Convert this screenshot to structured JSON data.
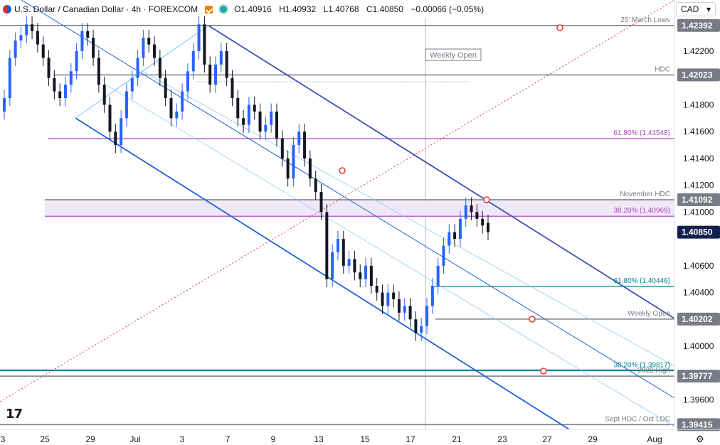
{
  "header": {
    "symbol_title": "U.S. Dollar / Canadian Dollar · 4h · FOREXCOM",
    "open": "O1.40916",
    "high": "H1.40932",
    "low": "L1.40768",
    "close": "C1.40850",
    "change": "−0.00066 (−0.05%)",
    "currency": "CAD",
    "icons": [
      "flag-icon",
      "alert-icon",
      "status-dot-icon",
      "chevron-down-icon",
      "gear-icon"
    ]
  },
  "chart_data": {
    "type": "candlestick",
    "y_tick_labels": [
      "1.42200",
      "1.41800",
      "1.41600",
      "1.41400",
      "1.41200",
      "1.41000",
      "1.40600",
      "1.40400",
      "1.40000",
      "1.39600"
    ],
    "x_tick_labels": [
      "3",
      "25",
      "29",
      "Jul",
      "3",
      "7",
      "9",
      "13",
      "15",
      "17",
      "21",
      "23",
      "27",
      "29",
      "Aug"
    ],
    "price_tags": [
      {
        "value": "1.42392",
        "style": "gray"
      },
      {
        "value": "1.42023",
        "style": "gray"
      },
      {
        "value": "1.41092",
        "style": "gray"
      },
      {
        "value": "1.40850",
        "style": "current"
      },
      {
        "value": "1.40202",
        "style": "gray"
      },
      {
        "value": "1.39777",
        "style": "gray"
      },
      {
        "value": "1.39415",
        "style": "gray"
      }
    ],
    "level_labels": [
      {
        "text": "25' March Lows",
        "price": 1.42392,
        "color": "#787b86"
      },
      {
        "text": "HDC",
        "price": 1.42023,
        "color": "#787b86"
      },
      {
        "text": "61.80% (1.41548)",
        "price": 1.41548,
        "color": "#ab47bc"
      },
      {
        "text": "November HDC",
        "price": 1.41092,
        "color": "#787b86"
      },
      {
        "text": "38.20% (1.40969)",
        "price": 1.40969,
        "color": "#ab47bc"
      },
      {
        "text": "61.80% (1.40446)",
        "price": 1.40446,
        "color": "#00838f"
      },
      {
        "text": "Weekly Open",
        "price": 1.40202,
        "color": "#787b86"
      },
      {
        "text": "38.20% (1.39817)",
        "price": 1.39817,
        "color": "#00838f"
      },
      {
        "text": "2022 High",
        "price": 1.39777,
        "color": "#787b86"
      },
      {
        "text": "Sept HDC / Oct LDC",
        "price": 1.39415,
        "color": "#787b86"
      }
    ],
    "annotation_box": "Weekly Open",
    "up_color": "#2962ff",
    "down_color": "#131722",
    "candles_close": [
      1.4185,
      1.4215,
      1.4228,
      1.4232,
      1.424,
      1.4235,
      1.4225,
      1.4215,
      1.42,
      1.419,
      1.4185,
      1.4195,
      1.4205,
      1.422,
      1.4235,
      1.423,
      1.4215,
      1.4195,
      1.418,
      1.416,
      1.415,
      1.417,
      1.419,
      1.42,
      1.4215,
      1.423,
      1.4225,
      1.4215,
      1.42,
      1.4185,
      1.417,
      1.4175,
      1.419,
      1.4205,
      1.422,
      1.424,
      1.421,
      1.4195,
      1.421,
      1.422,
      1.42,
      1.4185,
      1.417,
      1.4165,
      1.418,
      1.4175,
      1.416,
      1.4165,
      1.4175,
      1.4155,
      1.414,
      1.4125,
      1.415,
      1.416,
      1.414,
      1.4125,
      1.4115,
      1.41,
      1.405,
      1.407,
      1.408,
      1.406,
      1.4065,
      1.4055,
      1.405,
      1.406,
      1.4045,
      1.404,
      1.403,
      1.404,
      1.4035,
      1.4025,
      1.403,
      1.402,
      1.401,
      1.4015,
      1.403,
      1.4045,
      1.406,
      1.4075,
      1.4085,
      1.408,
      1.4095,
      1.4105,
      1.41,
      1.4095,
      1.409,
      1.4085
    ],
    "candles_open": [
      1.4175,
      1.4185,
      1.4215,
      1.4228,
      1.4232,
      1.424,
      1.4235,
      1.4225,
      1.4215,
      1.42,
      1.419,
      1.4185,
      1.4195,
      1.4205,
      1.422,
      1.4235,
      1.423,
      1.4215,
      1.4195,
      1.418,
      1.416,
      1.415,
      1.417,
      1.419,
      1.42,
      1.4215,
      1.423,
      1.4225,
      1.4215,
      1.42,
      1.4185,
      1.417,
      1.4175,
      1.419,
      1.4205,
      1.422,
      1.424,
      1.421,
      1.4195,
      1.421,
      1.422,
      1.42,
      1.4185,
      1.417,
      1.4165,
      1.418,
      1.4175,
      1.416,
      1.4165,
      1.4175,
      1.4155,
      1.414,
      1.4125,
      1.415,
      1.416,
      1.414,
      1.4125,
      1.4115,
      1.41,
      1.405,
      1.407,
      1.408,
      1.406,
      1.4065,
      1.4055,
      1.405,
      1.406,
      1.4045,
      1.404,
      1.403,
      1.404,
      1.4035,
      1.4025,
      1.403,
      1.402,
      1.401,
      1.4015,
      1.403,
      1.4045,
      1.406,
      1.4075,
      1.4085,
      1.408,
      1.4095,
      1.4105,
      1.41,
      1.4095,
      1.4092
    ]
  }
}
